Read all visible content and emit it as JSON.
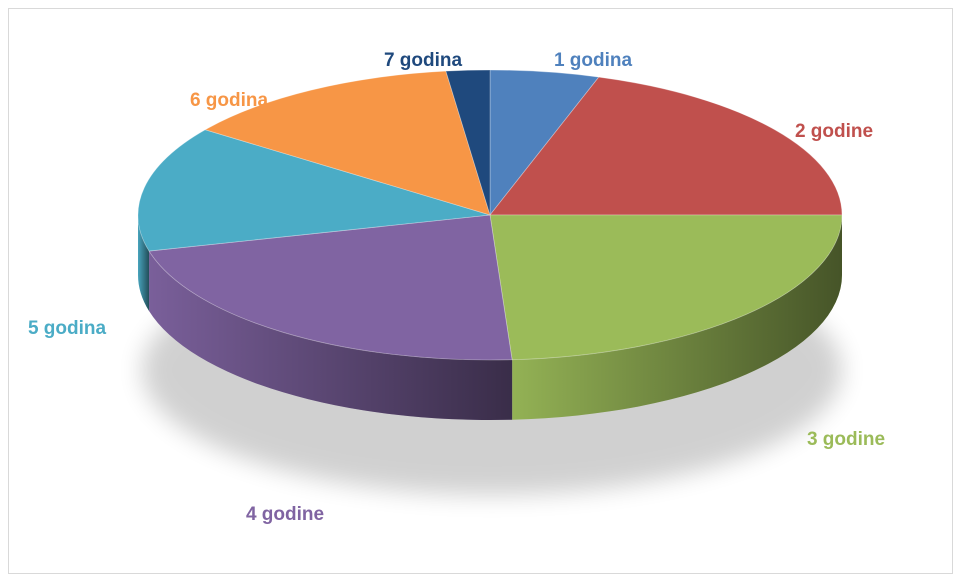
{
  "chart_data": {
    "type": "pie",
    "style": "3d",
    "title": "",
    "legend": "none",
    "categories": [
      "1 godina",
      "2 godine",
      "3 godine",
      "4 godine",
      "5 godina",
      "6 godina",
      "7 godina"
    ],
    "values": [
      5,
      20,
      24,
      22,
      14,
      13,
      2
    ],
    "colors": [
      "#4f81bd",
      "#c0504d",
      "#9bbb59",
      "#8064a2",
      "#4bacc6",
      "#f79646",
      "#1f497d"
    ],
    "label_colors": [
      "#4f81bd",
      "#c0504d",
      "#9bbb59",
      "#8064a2",
      "#4bacc6",
      "#f79646",
      "#1f497d"
    ]
  }
}
